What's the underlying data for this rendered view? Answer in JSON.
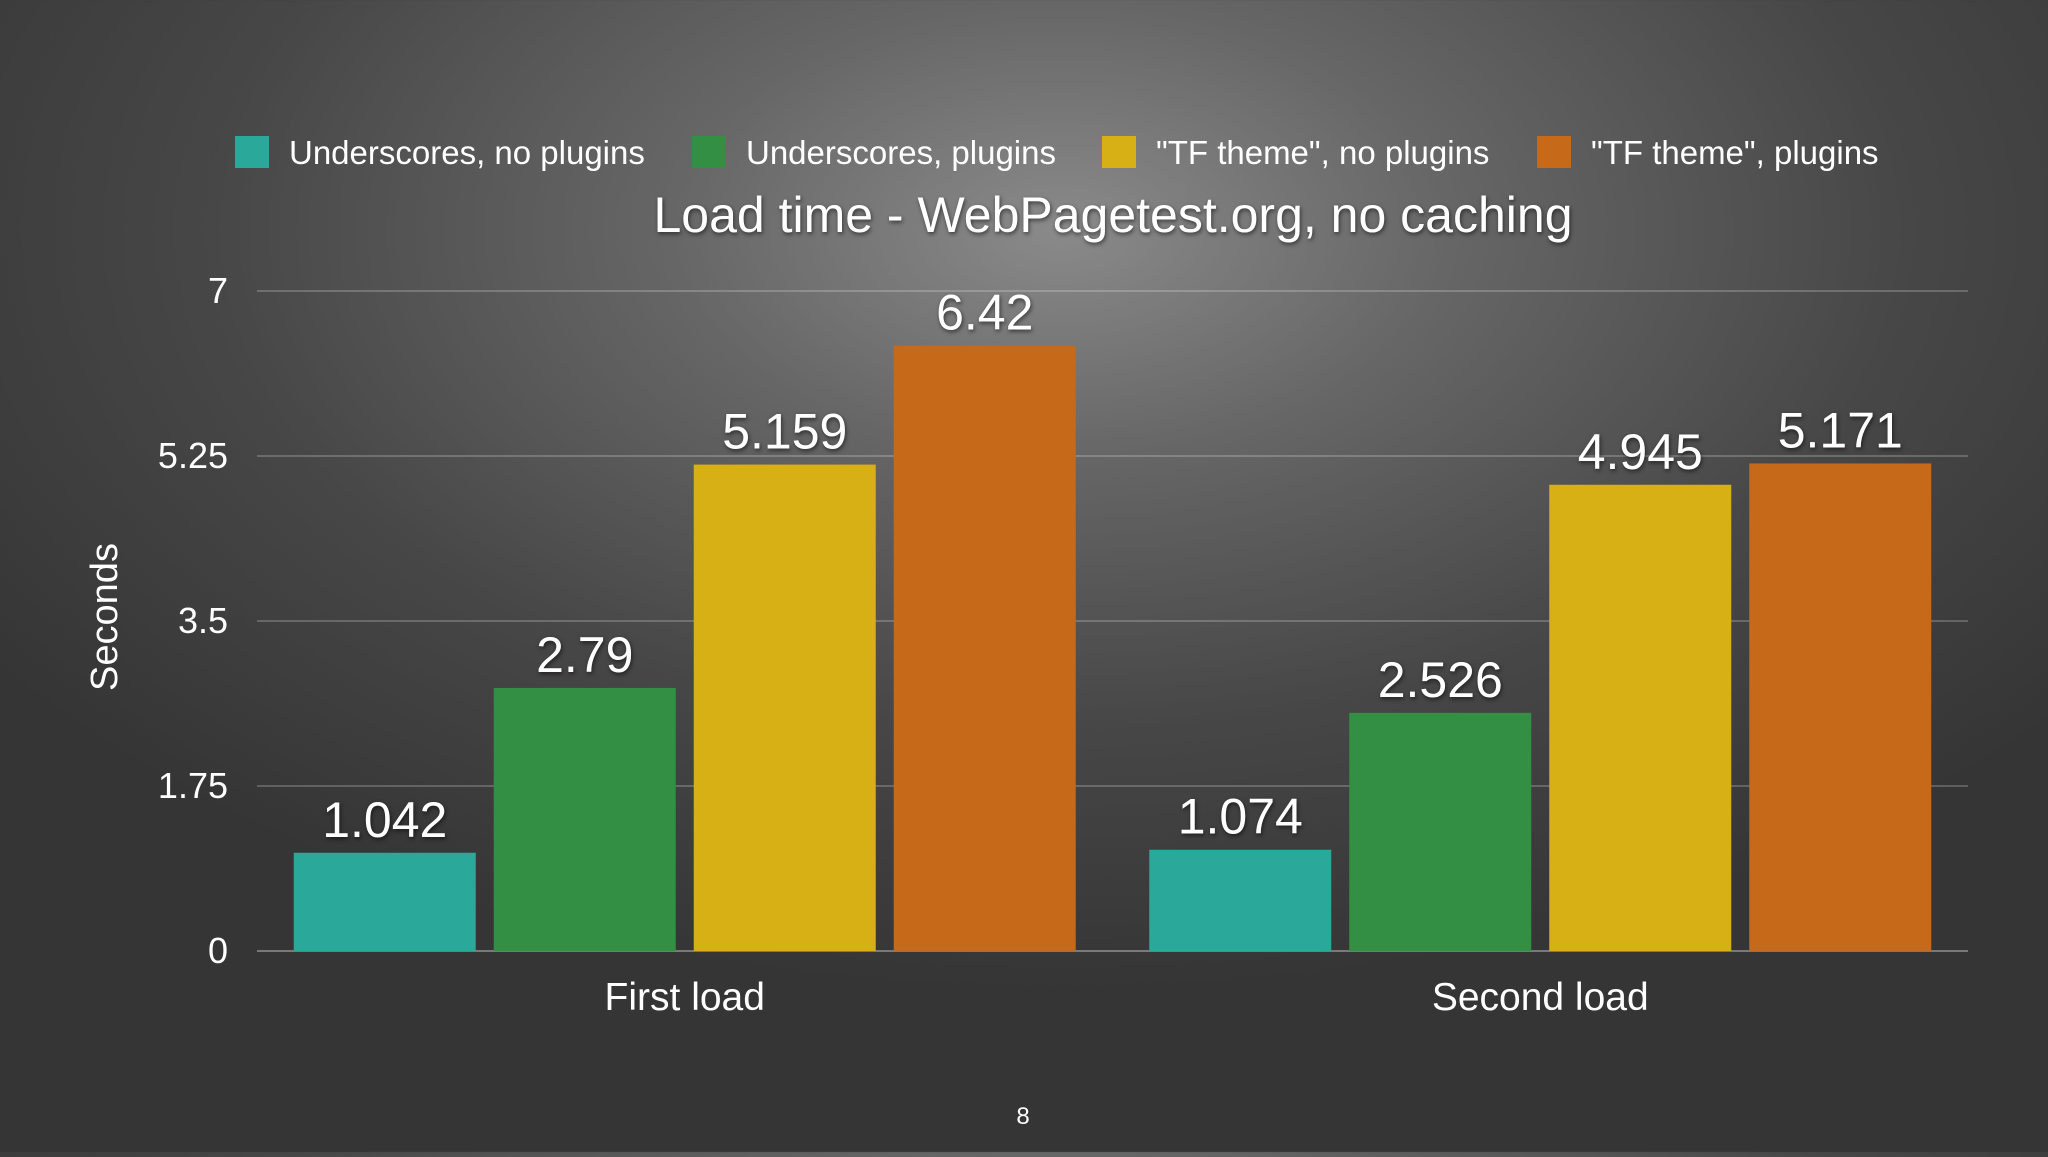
{
  "slide": {
    "page_number": "8"
  },
  "chart_data": {
    "type": "bar",
    "title": "Load time - WebPagetest.org, no caching",
    "xlabel": "",
    "ylabel": "Seconds",
    "ylim": [
      0,
      7
    ],
    "yticks": [
      "0",
      "1.75",
      "3.5",
      "5.25",
      "7"
    ],
    "ytick_values": [
      0,
      1.75,
      3.5,
      5.25,
      7
    ],
    "grid": true,
    "legend_position": "top",
    "categories": [
      "First load",
      "Second load"
    ],
    "series": [
      {
        "name": "Underscores, no plugins",
        "color": "#2aa89a",
        "values": [
          1.042,
          1.074
        ],
        "labels": [
          "1.042",
          "1.074"
        ]
      },
      {
        "name": "Underscores, plugins",
        "color": "#338f43",
        "values": [
          2.79,
          2.526
        ],
        "labels": [
          "2.79",
          "2.526"
        ]
      },
      {
        "name": "\"TF theme\", no plugins",
        "color": "#d7b016",
        "values": [
          5.159,
          4.945
        ],
        "labels": [
          "5.159",
          "4.945"
        ]
      },
      {
        "name": "\"TF theme\", plugins",
        "color": "#c66918",
        "values": [
          6.42,
          5.171
        ],
        "labels": [
          "6.42",
          "5.171"
        ]
      }
    ]
  }
}
